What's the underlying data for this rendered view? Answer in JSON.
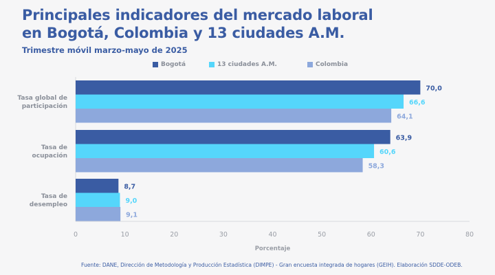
{
  "title_line1": "Principales indicadores del mercado laboral",
  "title_line2": "en Bogotá, Colombia y 13 ciudades A.M.",
  "subtitle": "Trimestre móvil marzo-mayo de 2025",
  "source": "Fuente: DANE, Dirección de Metodología y Producción Estadística (DIMPE) - Gran encuesta integrada de hogares (GEIH). Elaboración SDDE-ODEB.",
  "colors": {
    "title": "#3a5ca3",
    "bogota": "#3a5ca3",
    "ciudades": "#55d6fb",
    "colombia": "#8da8dc",
    "axis_text": "#9a9ea6"
  },
  "chart_data": {
    "type": "bar",
    "orientation": "horizontal",
    "title": "Principales indicadores del mercado laboral en Bogotá, Colombia y 13 ciudades A.M.",
    "subtitle": "Trimestre móvil marzo-mayo de 2025",
    "categories": [
      "Tasa global de participación",
      "Tasa de ocupación",
      "Tasa de desempleo"
    ],
    "category_lines": [
      [
        "Tasa global de",
        "participación"
      ],
      [
        "Tasa de",
        "ocupación"
      ],
      [
        "Tasa de",
        "desempleo"
      ]
    ],
    "series": [
      {
        "name": "Bogotá",
        "values": [
          70.0,
          63.9,
          8.7
        ],
        "labels": [
          "70,0",
          "63,9",
          "8,7"
        ]
      },
      {
        "name": "13 ciudades A.M.",
        "values": [
          66.6,
          60.6,
          9.0
        ],
        "labels": [
          "66,6",
          "60,6",
          "9,0"
        ]
      },
      {
        "name": "Colombia",
        "values": [
          64.1,
          58.3,
          9.1
        ],
        "labels": [
          "64,1",
          "58,3",
          "9,1"
        ]
      }
    ],
    "xlabel": "Porcentaje",
    "ylabel": "",
    "xlim": [
      0,
      80
    ],
    "xticks": [
      0,
      10,
      20,
      30,
      40,
      50,
      60,
      70,
      80
    ],
    "grid": false,
    "legend_position": "top"
  }
}
